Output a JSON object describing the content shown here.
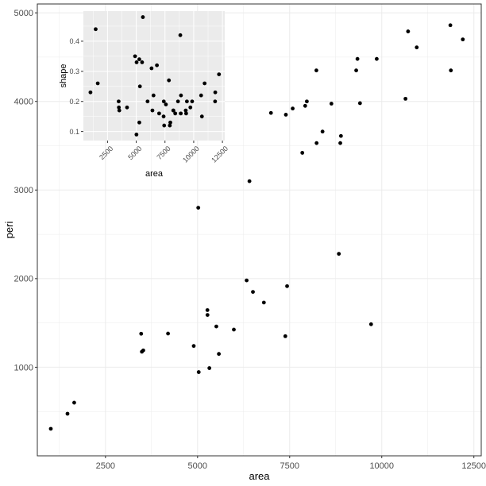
{
  "chart_data": [
    {
      "type": "scatter",
      "panel": "main",
      "xlabel": "area",
      "ylabel": "peri",
      "xlim": [
        650,
        12700
      ],
      "ylim": [
        0,
        5100
      ],
      "x_ticks": [
        2500,
        5000,
        7500,
        10000,
        12500
      ],
      "y_ticks": [
        1000,
        2000,
        3000,
        4000,
        5000
      ],
      "grid": true,
      "theme": "bw",
      "point_color": "#000000",
      "background": "#ffffff",
      "grid_color": "#ebebeb",
      "x": [
        1016,
        1469,
        1651,
        3469,
        3488,
        3526,
        4198,
        4896,
        5019,
        5031,
        5267,
        5269,
        5320,
        5509,
        5578,
        5985,
        6332,
        6408,
        6503,
        6800,
        6992,
        7382,
        7397,
        7430,
        7582,
        7843,
        7921,
        7966,
        8225,
        8231,
        8392,
        8633,
        8835,
        8874,
        8892,
        9306,
        9340,
        9409,
        9710,
        9863,
        10644,
        10714,
        10949,
        11862,
        11876,
        12200
      ],
      "y": [
        305,
        475,
        600,
        1378,
        1175,
        1190,
        1380,
        1240,
        2800,
        945,
        1645,
        1590,
        990,
        1460,
        1150,
        1425,
        1980,
        3100,
        1850,
        1730,
        3870,
        1350,
        3850,
        1915,
        3920,
        3420,
        3950,
        4000,
        4350,
        3530,
        3660,
        3975,
        2280,
        3530,
        3610,
        4350,
        4480,
        3980,
        1485,
        4480,
        4030,
        4790,
        4610,
        4860,
        4350,
        4700
      ]
    },
    {
      "type": "scatter",
      "panel": "inset",
      "xlabel": "area",
      "ylabel": "shape",
      "xlim": [
        400,
        12700
      ],
      "ylim": [
        0.07,
        0.5
      ],
      "x_ticks": [
        2500,
        5000,
        7500,
        10000,
        12500
      ],
      "y_ticks": [
        0.1,
        0.2,
        0.3,
        0.4
      ],
      "grid": true,
      "theme": "grey",
      "point_color": "#000000",
      "background": "#ebebeb",
      "grid_color": "#ffffff",
      "x": [
        1016,
        1469,
        1651,
        3469,
        3488,
        3526,
        4198,
        4896,
        5019,
        5031,
        5267,
        5269,
        5320,
        5509,
        5578,
        5985,
        6332,
        6408,
        6503,
        6800,
        6992,
        7382,
        7397,
        7430,
        7582,
        7843,
        7921,
        7966,
        8225,
        8231,
        8392,
        8633,
        8835,
        8874,
        8892,
        9306,
        9340,
        9409,
        9710,
        9863,
        10644,
        10714,
        10949,
        11862,
        11876,
        12200
      ],
      "y": [
        0.23,
        0.44,
        0.26,
        0.2,
        0.18,
        0.17,
        0.18,
        0.35,
        0.09,
        0.33,
        0.34,
        0.13,
        0.25,
        0.33,
        0.48,
        0.2,
        0.31,
        0.17,
        0.22,
        0.32,
        0.16,
        0.15,
        0.2,
        0.12,
        0.19,
        0.27,
        0.12,
        0.13,
        0.17,
        0.17,
        0.16,
        0.2,
        0.42,
        0.16,
        0.22,
        0.17,
        0.16,
        0.2,
        0.18,
        0.2,
        0.22,
        0.15,
        0.26,
        0.2,
        0.23,
        0.29
      ]
    }
  ]
}
